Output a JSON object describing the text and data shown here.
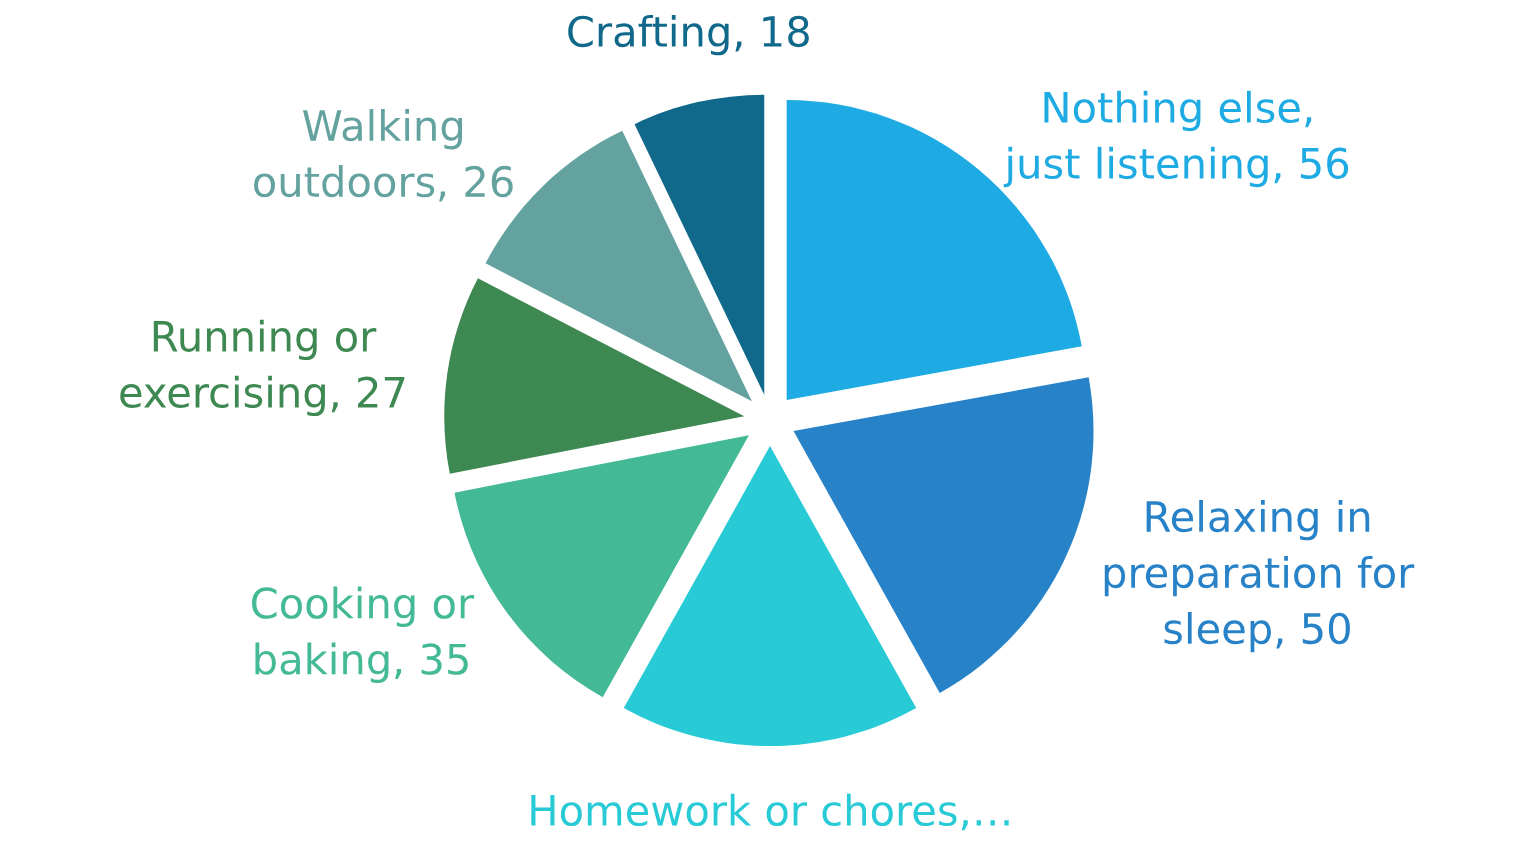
{
  "chart_data": {
    "type": "pie",
    "categories": [
      "Nothing else, just listening",
      "Relaxing in preparation for sleep",
      "Homework or chores,…",
      "Cooking or baking",
      "Running or exercising",
      "Walking outdoors",
      "Crafting"
    ],
    "values": [
      56,
      50,
      41,
      35,
      27,
      26,
      18
    ],
    "value_labels": [
      ", 56",
      ", 50",
      null,
      ", 35",
      ", 27",
      ", 26",
      ", 18"
    ],
    "colors": [
      "#1eaae2",
      "#2882c8",
      "#28cad6",
      "#43b996",
      "#3e8852",
      "#63a29f",
      "#10688a"
    ]
  }
}
